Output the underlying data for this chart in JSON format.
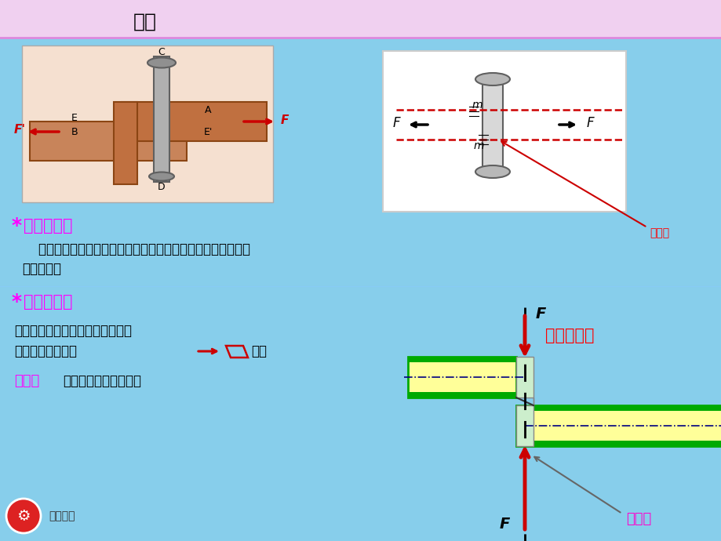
{
  "title": "搭接",
  "bg_top_color": "#f0d0f0",
  "bg_main_color": "#87ceeb",
  "title_color": "#000000",
  "star_color": "#ff00ff",
  "heading1": "受力特征：",
  "heading1_color": "#ff00ff",
  "text1": "    作用在构件两侧面上的外力合力大小相等、方向相反且作用线",
  "text1b": "相距很近。",
  "heading2": "变形特征：",
  "heading2_color": "#ff00ff",
  "text2a": "杆件沿两力之间的截面发生错动，",
  "text2b": "直至破坏（小矩形",
  "text2c": "）。",
  "text3_label": "单剪：",
  "text3_label_color": "#ff00ff",
  "text3": "有一个剪切面的杆件。",
  "label_jianjianmian1": "剪切面",
  "label_jianjianmian1_color": "#ff0000",
  "label_jianchuang": "剪床剪钢板",
  "label_jianchuang_color": "#ff0000",
  "label_jianjianmian2": "剪切面",
  "label_jianjianmian2_color": "#ff00cc",
  "shear_outer_green": "#00aa00",
  "shear_inner_yellow": "#ffff99",
  "shear_centerline": "#000080"
}
